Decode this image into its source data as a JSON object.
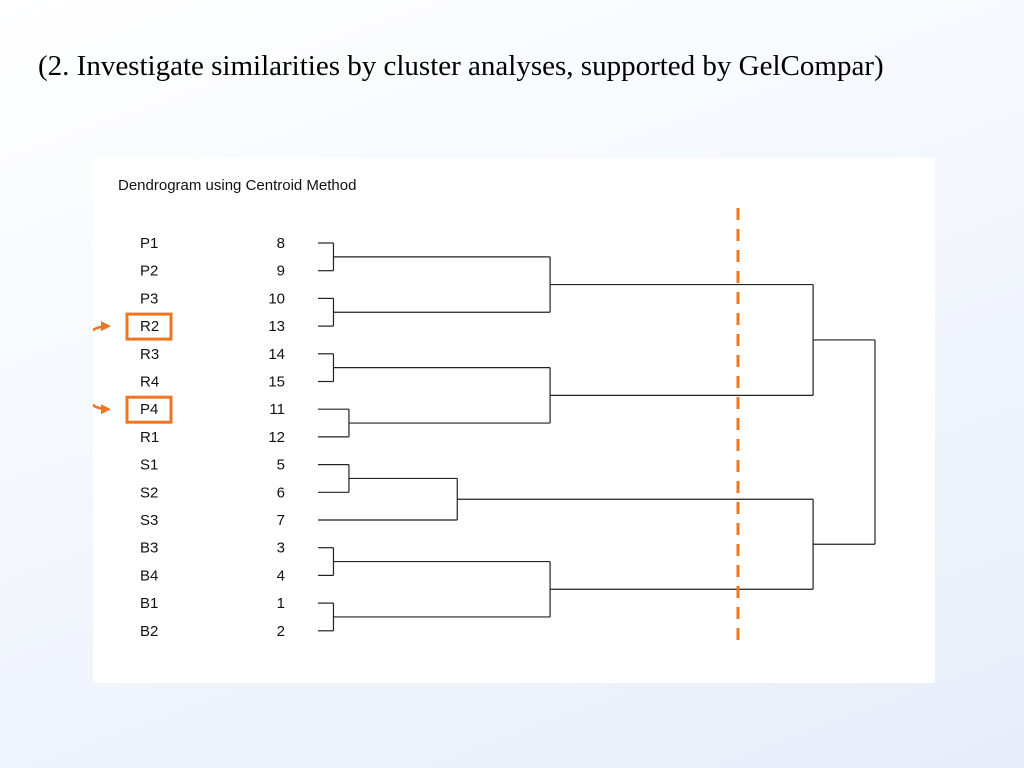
{
  "slide": {
    "title": "(2. Investigate similarities by cluster analyses, supported by GelCompar)"
  },
  "dendrogram": {
    "title": "Dendrogram using Centroid Method",
    "leaves": [
      {
        "label": "P1",
        "case": "8"
      },
      {
        "label": "P2",
        "case": "9"
      },
      {
        "label": "P3",
        "case": "10"
      },
      {
        "label": "R2",
        "case": "13",
        "highlighted": true
      },
      {
        "label": "R3",
        "case": "14"
      },
      {
        "label": "R4",
        "case": "15"
      },
      {
        "label": "P4",
        "case": "11",
        "highlighted": true
      },
      {
        "label": "R1",
        "case": "12"
      },
      {
        "label": "S1",
        "case": "5"
      },
      {
        "label": "S2",
        "case": "6"
      },
      {
        "label": "S3",
        "case": "7"
      },
      {
        "label": "B3",
        "case": "3"
      },
      {
        "label": "B4",
        "case": "4"
      },
      {
        "label": "B1",
        "case": "1"
      },
      {
        "label": "B2",
        "case": "2"
      }
    ],
    "colors": {
      "line": "#222222",
      "highlight": "#ee7522"
    },
    "annotations": {
      "cut_line": "dashed vertical cut line through the dendrogram",
      "arrow": "double-headed curved arrow linking R2 and P4"
    }
  }
}
